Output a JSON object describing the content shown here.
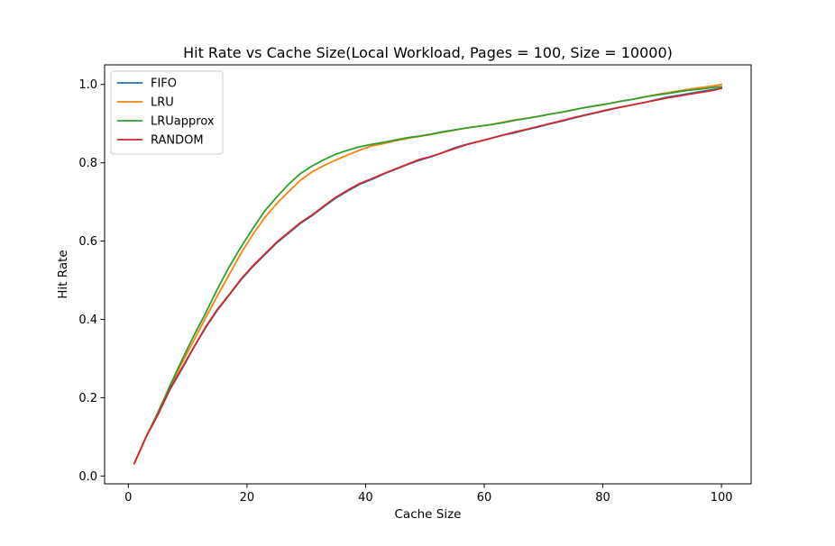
{
  "chart_data": {
    "type": "line",
    "title": "Hit Rate vs Cache Size(Local Workload, Pages = 100, Size = 10000)",
    "xlabel": "Cache Size",
    "ylabel": "Hit Rate",
    "xlim": [
      -4,
      105
    ],
    "ylim": [
      -0.02,
      1.05
    ],
    "xticks": [
      0,
      20,
      40,
      60,
      80,
      100
    ],
    "yticks": [
      0.0,
      0.2,
      0.4,
      0.6,
      0.8,
      1.0
    ],
    "xtick_labels": [
      "0",
      "20",
      "40",
      "60",
      "80",
      "100"
    ],
    "ytick_labels": [
      "0.0",
      "0.2",
      "0.4",
      "0.6",
      "0.8",
      "1.0"
    ],
    "grid": false,
    "legend_position": "top-left",
    "series": [
      {
        "name": "FIFO",
        "color": "#1f77b4",
        "x": [
          1,
          3,
          5,
          7,
          9,
          11,
          13,
          15,
          17,
          19,
          21,
          23,
          25,
          27,
          29,
          31,
          33,
          35,
          37,
          39,
          41,
          43,
          45,
          47,
          49,
          51,
          53,
          55,
          57,
          59,
          61,
          63,
          65,
          67,
          69,
          71,
          73,
          75,
          77,
          79,
          81,
          83,
          85,
          87,
          89,
          91,
          93,
          95,
          97,
          99,
          100
        ],
        "y": [
          0.032,
          0.1,
          0.157,
          0.22,
          0.272,
          0.327,
          0.378,
          0.423,
          0.462,
          0.501,
          0.535,
          0.565,
          0.595,
          0.62,
          0.645,
          0.665,
          0.688,
          0.71,
          0.728,
          0.745,
          0.757,
          0.771,
          0.783,
          0.795,
          0.806,
          0.815,
          0.826,
          0.838,
          0.847,
          0.854,
          0.862,
          0.87,
          0.876,
          0.884,
          0.891,
          0.899,
          0.906,
          0.914,
          0.921,
          0.928,
          0.935,
          0.942,
          0.948,
          0.954,
          0.961,
          0.968,
          0.973,
          0.978,
          0.983,
          0.988,
          0.99
        ]
      },
      {
        "name": "LRU",
        "color": "#ff7f0e",
        "x": [
          1,
          3,
          5,
          7,
          9,
          11,
          13,
          15,
          17,
          19,
          21,
          23,
          25,
          27,
          29,
          31,
          33,
          35,
          37,
          39,
          41,
          43,
          45,
          47,
          49,
          51,
          53,
          55,
          57,
          59,
          61,
          63,
          65,
          67,
          69,
          71,
          73,
          75,
          77,
          79,
          81,
          83,
          85,
          87,
          89,
          91,
          93,
          95,
          97,
          99,
          100
        ],
        "y": [
          0.032,
          0.1,
          0.162,
          0.226,
          0.288,
          0.345,
          0.403,
          0.46,
          0.514,
          0.569,
          0.617,
          0.66,
          0.695,
          0.726,
          0.755,
          0.777,
          0.793,
          0.807,
          0.82,
          0.832,
          0.843,
          0.849,
          0.856,
          0.862,
          0.867,
          0.872,
          0.878,
          0.883,
          0.889,
          0.893,
          0.897,
          0.903,
          0.909,
          0.913,
          0.918,
          0.924,
          0.929,
          0.935,
          0.941,
          0.946,
          0.951,
          0.957,
          0.962,
          0.968,
          0.974,
          0.979,
          0.984,
          0.989,
          0.993,
          0.997,
          1.0
        ]
      },
      {
        "name": "LRUapprox",
        "color": "#2ca02c",
        "x": [
          1,
          3,
          5,
          7,
          9,
          11,
          13,
          15,
          17,
          19,
          21,
          23,
          25,
          27,
          29,
          31,
          33,
          35,
          37,
          39,
          41,
          43,
          45,
          47,
          49,
          51,
          53,
          55,
          57,
          59,
          61,
          63,
          65,
          67,
          69,
          71,
          73,
          75,
          77,
          79,
          81,
          83,
          85,
          87,
          89,
          91,
          93,
          95,
          97,
          99,
          100
        ],
        "y": [
          0.032,
          0.1,
          0.163,
          0.23,
          0.295,
          0.357,
          0.415,
          0.477,
          0.534,
          0.585,
          0.632,
          0.677,
          0.712,
          0.745,
          0.772,
          0.792,
          0.808,
          0.822,
          0.832,
          0.841,
          0.847,
          0.852,
          0.858,
          0.864,
          0.868,
          0.873,
          0.879,
          0.884,
          0.889,
          0.893,
          0.897,
          0.902,
          0.908,
          0.913,
          0.918,
          0.924,
          0.929,
          0.935,
          0.941,
          0.946,
          0.951,
          0.957,
          0.962,
          0.968,
          0.973,
          0.977,
          0.982,
          0.986,
          0.989,
          0.993,
          0.994
        ]
      },
      {
        "name": "RANDOM",
        "color": "#d62728",
        "x": [
          1,
          3,
          5,
          7,
          9,
          11,
          13,
          15,
          17,
          19,
          21,
          23,
          25,
          27,
          29,
          31,
          33,
          35,
          37,
          39,
          41,
          43,
          45,
          47,
          49,
          51,
          53,
          55,
          57,
          59,
          61,
          63,
          65,
          67,
          69,
          71,
          73,
          75,
          77,
          79,
          81,
          83,
          85,
          87,
          89,
          91,
          93,
          95,
          97,
          99,
          100
        ],
        "y": [
          0.032,
          0.1,
          0.157,
          0.222,
          0.275,
          0.328,
          0.38,
          0.425,
          0.463,
          0.503,
          0.537,
          0.567,
          0.597,
          0.622,
          0.647,
          0.667,
          0.69,
          0.712,
          0.73,
          0.747,
          0.759,
          0.772,
          0.784,
          0.796,
          0.808,
          0.816,
          0.826,
          0.836,
          0.846,
          0.854,
          0.862,
          0.87,
          0.878,
          0.885,
          0.892,
          0.9,
          0.907,
          0.915,
          0.922,
          0.929,
          0.936,
          0.942,
          0.948,
          0.954,
          0.96,
          0.966,
          0.971,
          0.976,
          0.981,
          0.986,
          0.991
        ]
      }
    ]
  }
}
